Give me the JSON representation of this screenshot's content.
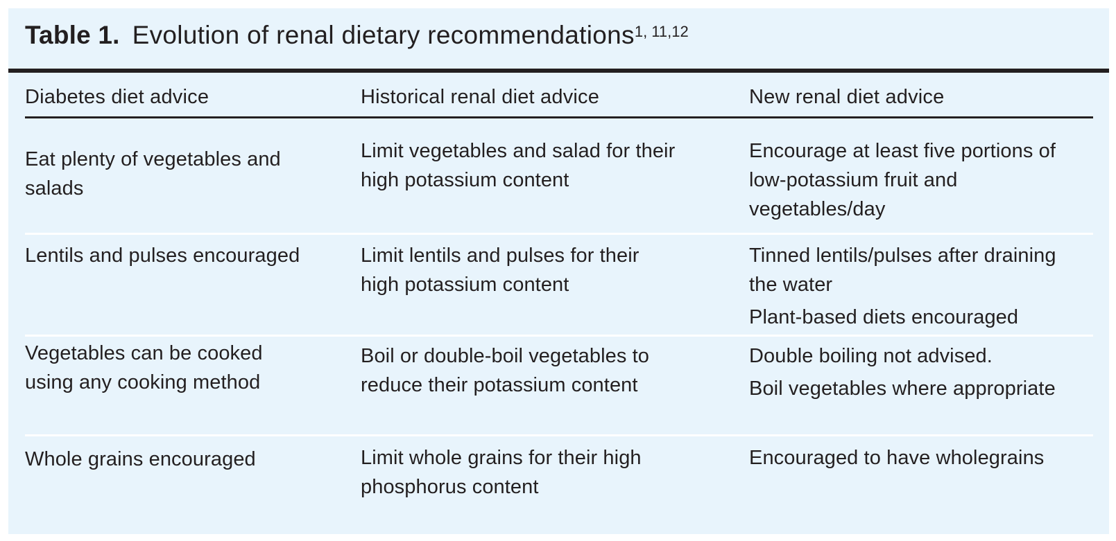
{
  "table": {
    "label": "Table 1.",
    "title": "Evolution of renal dietary recommendations",
    "refs": "1, 11,12",
    "headers": [
      "Diabetes diet advice",
      "Historical renal diet advice",
      "New renal diet advice"
    ],
    "rows": [
      {
        "diabetes": "Eat plenty of vegetables and salads",
        "historical": "Limit vegetables and salad for their high potassium content",
        "new": [
          "Encourage at least five portions of low-potassium fruit and vegetables/day"
        ]
      },
      {
        "diabetes": "Lentils and pulses encouraged",
        "historical": "Limit lentils and pulses for their high potassium content",
        "new": [
          "Tinned lentils/pulses after draining the water",
          "Plant-based diets encouraged"
        ]
      },
      {
        "diabetes": "Vegetables can be cooked using any cooking method",
        "historical": "Boil or double-boil vegetables to reduce their potassium content",
        "new": [
          "Double boiling not advised.",
          "Boil vegetables where appropriate"
        ]
      },
      {
        "diabetes": "Whole grains encouraged",
        "historical": "Limit whole grains for their high phosphorus content",
        "new": [
          "Encouraged to have wholegrains"
        ]
      }
    ]
  }
}
